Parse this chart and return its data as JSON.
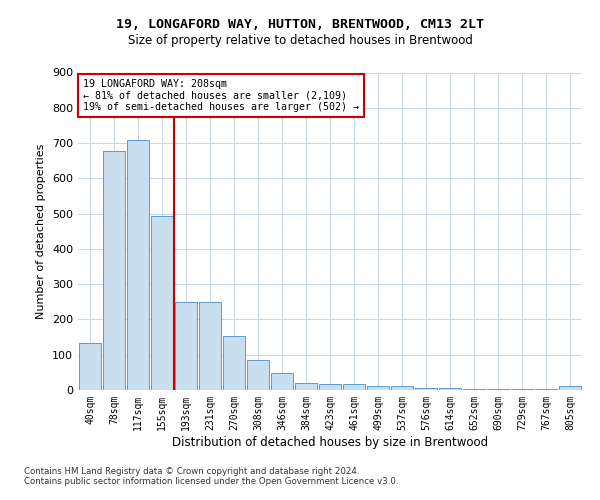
{
  "title": "19, LONGAFORD WAY, HUTTON, BRENTWOOD, CM13 2LT",
  "subtitle": "Size of property relative to detached houses in Brentwood",
  "xlabel": "Distribution of detached houses by size in Brentwood",
  "ylabel": "Number of detached properties",
  "bar_color": "#c9dff0",
  "bar_edge_color": "#5b9bd5",
  "categories": [
    "40sqm",
    "78sqm",
    "117sqm",
    "155sqm",
    "193sqm",
    "231sqm",
    "270sqm",
    "308sqm",
    "346sqm",
    "384sqm",
    "423sqm",
    "461sqm",
    "499sqm",
    "537sqm",
    "576sqm",
    "614sqm",
    "652sqm",
    "690sqm",
    "729sqm",
    "767sqm",
    "805sqm"
  ],
  "values": [
    133,
    678,
    710,
    493,
    250,
    250,
    153,
    85,
    47,
    20,
    17,
    17,
    10,
    10,
    5,
    5,
    2,
    2,
    2,
    2,
    10
  ],
  "vline_x_index": 3,
  "vline_color": "#cc0000",
  "annotation_line1": "19 LONGAFORD WAY: 208sqm",
  "annotation_line2": "← 81% of detached houses are smaller (2,109)",
  "annotation_line3": "19% of semi-detached houses are larger (502) →",
  "annotation_box_color": "white",
  "annotation_box_edge": "#cc0000",
  "ylim": [
    0,
    900
  ],
  "yticks": [
    0,
    100,
    200,
    300,
    400,
    500,
    600,
    700,
    800,
    900
  ],
  "footer1": "Contains HM Land Registry data © Crown copyright and database right 2024.",
  "footer2": "Contains public sector information licensed under the Open Government Licence v3.0.",
  "background_color": "#ffffff",
  "grid_color": "#c8d4e8"
}
